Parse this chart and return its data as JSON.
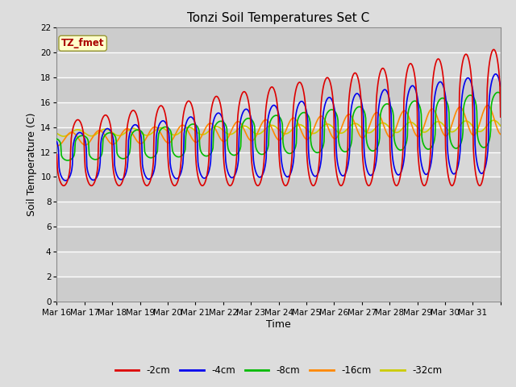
{
  "title": "Tonzi Soil Temperatures Set C",
  "xlabel": "Time",
  "ylabel": "Soil Temperature (C)",
  "ylim": [
    0,
    22
  ],
  "yticks": [
    0,
    2,
    4,
    6,
    8,
    10,
    12,
    14,
    16,
    18,
    20,
    22
  ],
  "x_labels": [
    "Mar 16",
    "Mar 17",
    "Mar 18",
    "Mar 19",
    "Mar 20",
    "Mar 21",
    "Mar 22",
    "Mar 23",
    "Mar 24",
    "Mar 25",
    "Mar 26",
    "Mar 27",
    "Mar 28",
    "Mar 29",
    "Mar 30",
    "Mar 31"
  ],
  "legend_label": "TZ_fmet",
  "series_labels": [
    "-2cm",
    "-4cm",
    "-8cm",
    "-16cm",
    "-32cm"
  ],
  "series_colors": [
    "#dd0000",
    "#0000ee",
    "#00bb00",
    "#ff8800",
    "#cccc00"
  ],
  "background_color": "#dddddd",
  "plot_bg_color": "#dddddd",
  "grid_color": "#ffffff",
  "title_fontsize": 11,
  "label_fontsize": 9,
  "tick_fontsize": 7.5
}
